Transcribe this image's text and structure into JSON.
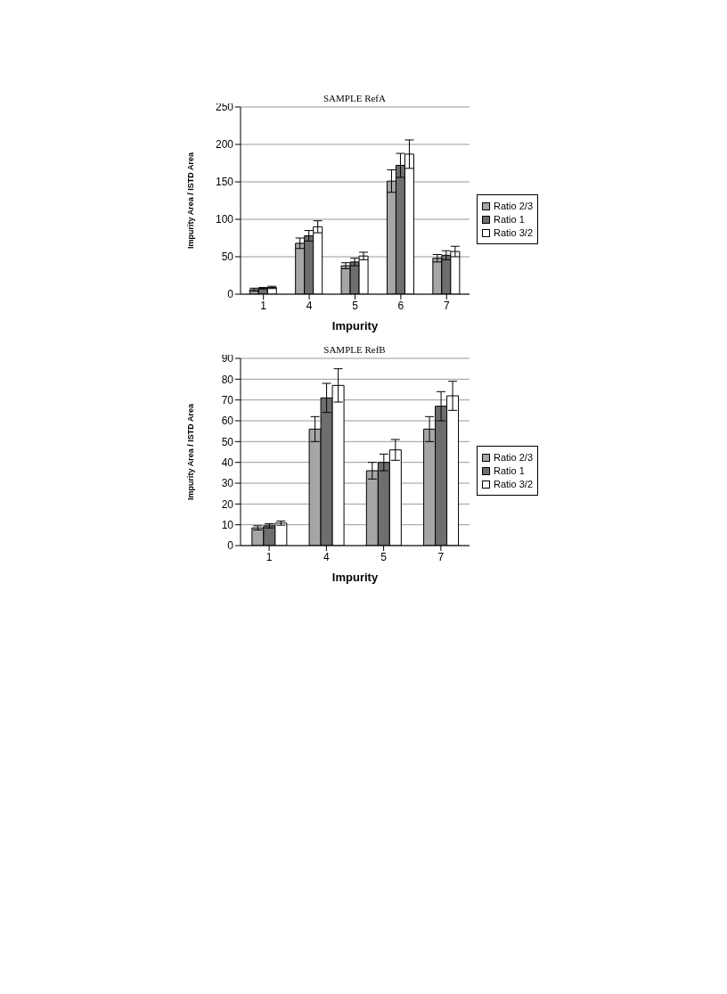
{
  "chart_data": [
    {
      "type": "bar",
      "title": "SAMPLE RefA",
      "xlabel": "Impurity",
      "ylabel": "Impurity Area / ISTD Area",
      "categories": [
        "1",
        "4",
        "5",
        "6",
        "7"
      ],
      "ylim": [
        0,
        250
      ],
      "yticks": [
        0,
        50,
        100,
        150,
        200,
        250
      ],
      "grid": "y",
      "legend": "right",
      "series": [
        {
          "name": "Ratio 2/3",
          "color": "#a6a6a6",
          "values": [
            6,
            68,
            38,
            151,
            48
          ],
          "errors": [
            2,
            7,
            4,
            15,
            5
          ]
        },
        {
          "name": "Ratio 1",
          "color": "#6e6e6e",
          "values": [
            8,
            78,
            43,
            172,
            52
          ],
          "errors": [
            1,
            7,
            5,
            16,
            6
          ]
        },
        {
          "name": "Ratio 3/2",
          "color": "#ffffff",
          "values": [
            9,
            90,
            51,
            187,
            57
          ],
          "errors": [
            1.5,
            8,
            5,
            19,
            7
          ]
        }
      ]
    },
    {
      "type": "bar",
      "title": "SAMPLE RefB",
      "xlabel": "Impurity",
      "ylabel": "Impurity Area / ISTD Area",
      "categories": [
        "1",
        "4",
        "5",
        "7"
      ],
      "ylim": [
        0,
        90
      ],
      "yticks": [
        0,
        10,
        20,
        30,
        40,
        50,
        60,
        70,
        80,
        90
      ],
      "grid": "y",
      "legend": "right",
      "series": [
        {
          "name": "Ratio 2/3",
          "color": "#a6a6a6",
          "values": [
            8.5,
            56,
            36,
            56
          ],
          "errors": [
            1,
            6,
            4,
            6
          ]
        },
        {
          "name": "Ratio 1",
          "color": "#6e6e6e",
          "values": [
            9.5,
            71,
            40,
            67
          ],
          "errors": [
            1,
            7,
            4,
            7
          ]
        },
        {
          "name": "Ratio 3/2",
          "color": "#ffffff",
          "values": [
            10.8,
            77,
            46,
            72
          ],
          "errors": [
            1,
            8,
            5,
            7
          ]
        }
      ]
    }
  ]
}
